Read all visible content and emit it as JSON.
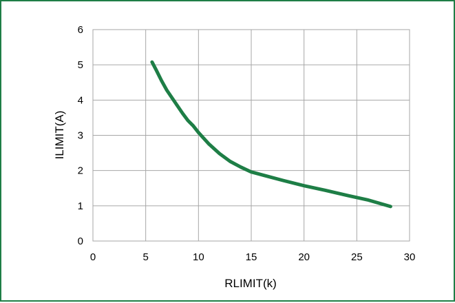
{
  "chart_data": {
    "type": "line",
    "title": "",
    "xlabel": "RLIMIT(k)",
    "ylabel": "ILIMIT(A)",
    "xlim": [
      0,
      30
    ],
    "ylim": [
      0,
      6
    ],
    "x_ticks": [
      0,
      5,
      10,
      15,
      20,
      25,
      30
    ],
    "y_ticks": [
      0,
      1,
      2,
      3,
      4,
      5,
      6
    ],
    "grid": true,
    "series": [
      {
        "color": "#1e7e46",
        "x": [
          5.6,
          6.0,
          6.5,
          7.0,
          7.5,
          8.0,
          8.5,
          9.0,
          9.5,
          10.0,
          11.0,
          12.0,
          13.0,
          14.0,
          15.0,
          16.0,
          18.0,
          20.0,
          22.0,
          24.0,
          26.0,
          28.2
        ],
        "y": [
          5.08,
          4.85,
          4.55,
          4.28,
          4.06,
          3.84,
          3.62,
          3.42,
          3.27,
          3.08,
          2.75,
          2.48,
          2.26,
          2.1,
          1.96,
          1.88,
          1.72,
          1.57,
          1.44,
          1.3,
          1.17,
          0.98
        ]
      }
    ],
    "frame_color": "#1e7e46"
  }
}
